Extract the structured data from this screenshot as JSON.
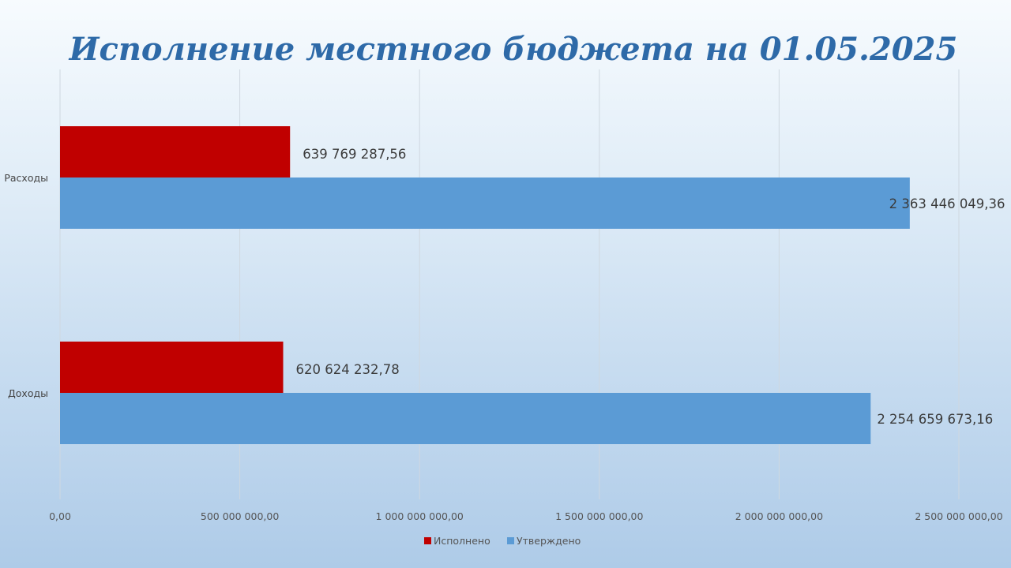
{
  "chart_data": {
    "type": "bar",
    "orientation": "horizontal",
    "title": "Исполнение местного бюджета на 01.05.2025",
    "categories": [
      "Расходы",
      "Доходы"
    ],
    "series": [
      {
        "name": "Исполнено",
        "color": "#c00000",
        "values": [
          639769287.56,
          620624232.78
        ],
        "labels": [
          "639 769 287,56",
          "620 624 232,78"
        ]
      },
      {
        "name": "Утверждено",
        "color": "#5b9bd5",
        "values": [
          2363446049.36,
          2254659673.16
        ],
        "labels": [
          "2 363 446 049,36",
          "2 254 659 673,16"
        ]
      }
    ],
    "xlim": [
      0,
      2500000000
    ],
    "xticks": [
      0,
      500000000,
      1000000000,
      1500000000,
      2000000000,
      2500000000
    ],
    "xtick_labels": [
      "0,00",
      "500 000 000,00",
      "1 000 000 000,00",
      "1 500 000 000,00",
      "2 000 000 000,00",
      "2 500 000 000,00"
    ],
    "grid": true,
    "legend": "bottom"
  }
}
